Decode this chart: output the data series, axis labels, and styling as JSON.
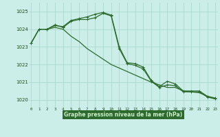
{
  "series": [
    {
      "values": [
        1023.2,
        1024.0,
        1024.0,
        1024.2,
        1024.15,
        1024.5,
        1024.6,
        1024.7,
        1024.85,
        1024.95,
        1024.8,
        1023.0,
        1022.1,
        1022.05,
        1021.85,
        1021.1,
        1020.75,
        1021.05,
        1020.9,
        1020.5,
        1020.5,
        1020.5,
        1020.2,
        1020.1
      ],
      "color": "#2d6a2d",
      "linewidth": 0.9,
      "marker": "+"
    },
    {
      "values": [
        1023.2,
        1024.0,
        1024.0,
        1024.25,
        1024.1,
        1024.45,
        1024.55,
        1024.55,
        1024.65,
        1024.9,
        1024.75,
        1022.9,
        1022.05,
        1021.95,
        1021.75,
        1021.05,
        1020.7,
        1020.85,
        1020.8,
        1020.45,
        1020.45,
        1020.45,
        1020.15,
        1020.05
      ],
      "color": "#2d6a2d",
      "linewidth": 0.9,
      "marker": "+"
    },
    {
      "values": [
        1023.2,
        1024.0,
        1024.0,
        1024.1,
        1024.0,
        1023.6,
        1023.3,
        1022.9,
        1022.6,
        1022.3,
        1022.0,
        1021.8,
        1021.6,
        1021.4,
        1021.2,
        1021.0,
        1020.85,
        1020.7,
        1020.7,
        1020.5,
        1020.45,
        1020.4,
        1020.2,
        1020.05
      ],
      "color": "#2d6a2d",
      "linewidth": 0.9,
      "marker": null
    }
  ],
  "x_labels": [
    "0",
    "1",
    "2",
    "3",
    "4",
    "5",
    "6",
    "7",
    "8",
    "9",
    "10",
    "11",
    "12",
    "13",
    "14",
    "15",
    "16",
    "17",
    "18",
    "19",
    "20",
    "21",
    "22",
    "23"
  ],
  "y_ticks": [
    1020,
    1021,
    1022,
    1023,
    1024,
    1025
  ],
  "ylim": [
    1019.6,
    1025.5
  ],
  "xlim": [
    -0.3,
    23.3
  ],
  "xlabel": "Graphe pression niveau de la mer (hPa)",
  "bg_color": "#cceee8",
  "grid_color": "#aad8cc",
  "line_color": "#2d6a2d",
  "text_color": "#1a4a1a",
  "xlabel_bg": "#2d6a2d",
  "xlabel_text": "#cceecc"
}
